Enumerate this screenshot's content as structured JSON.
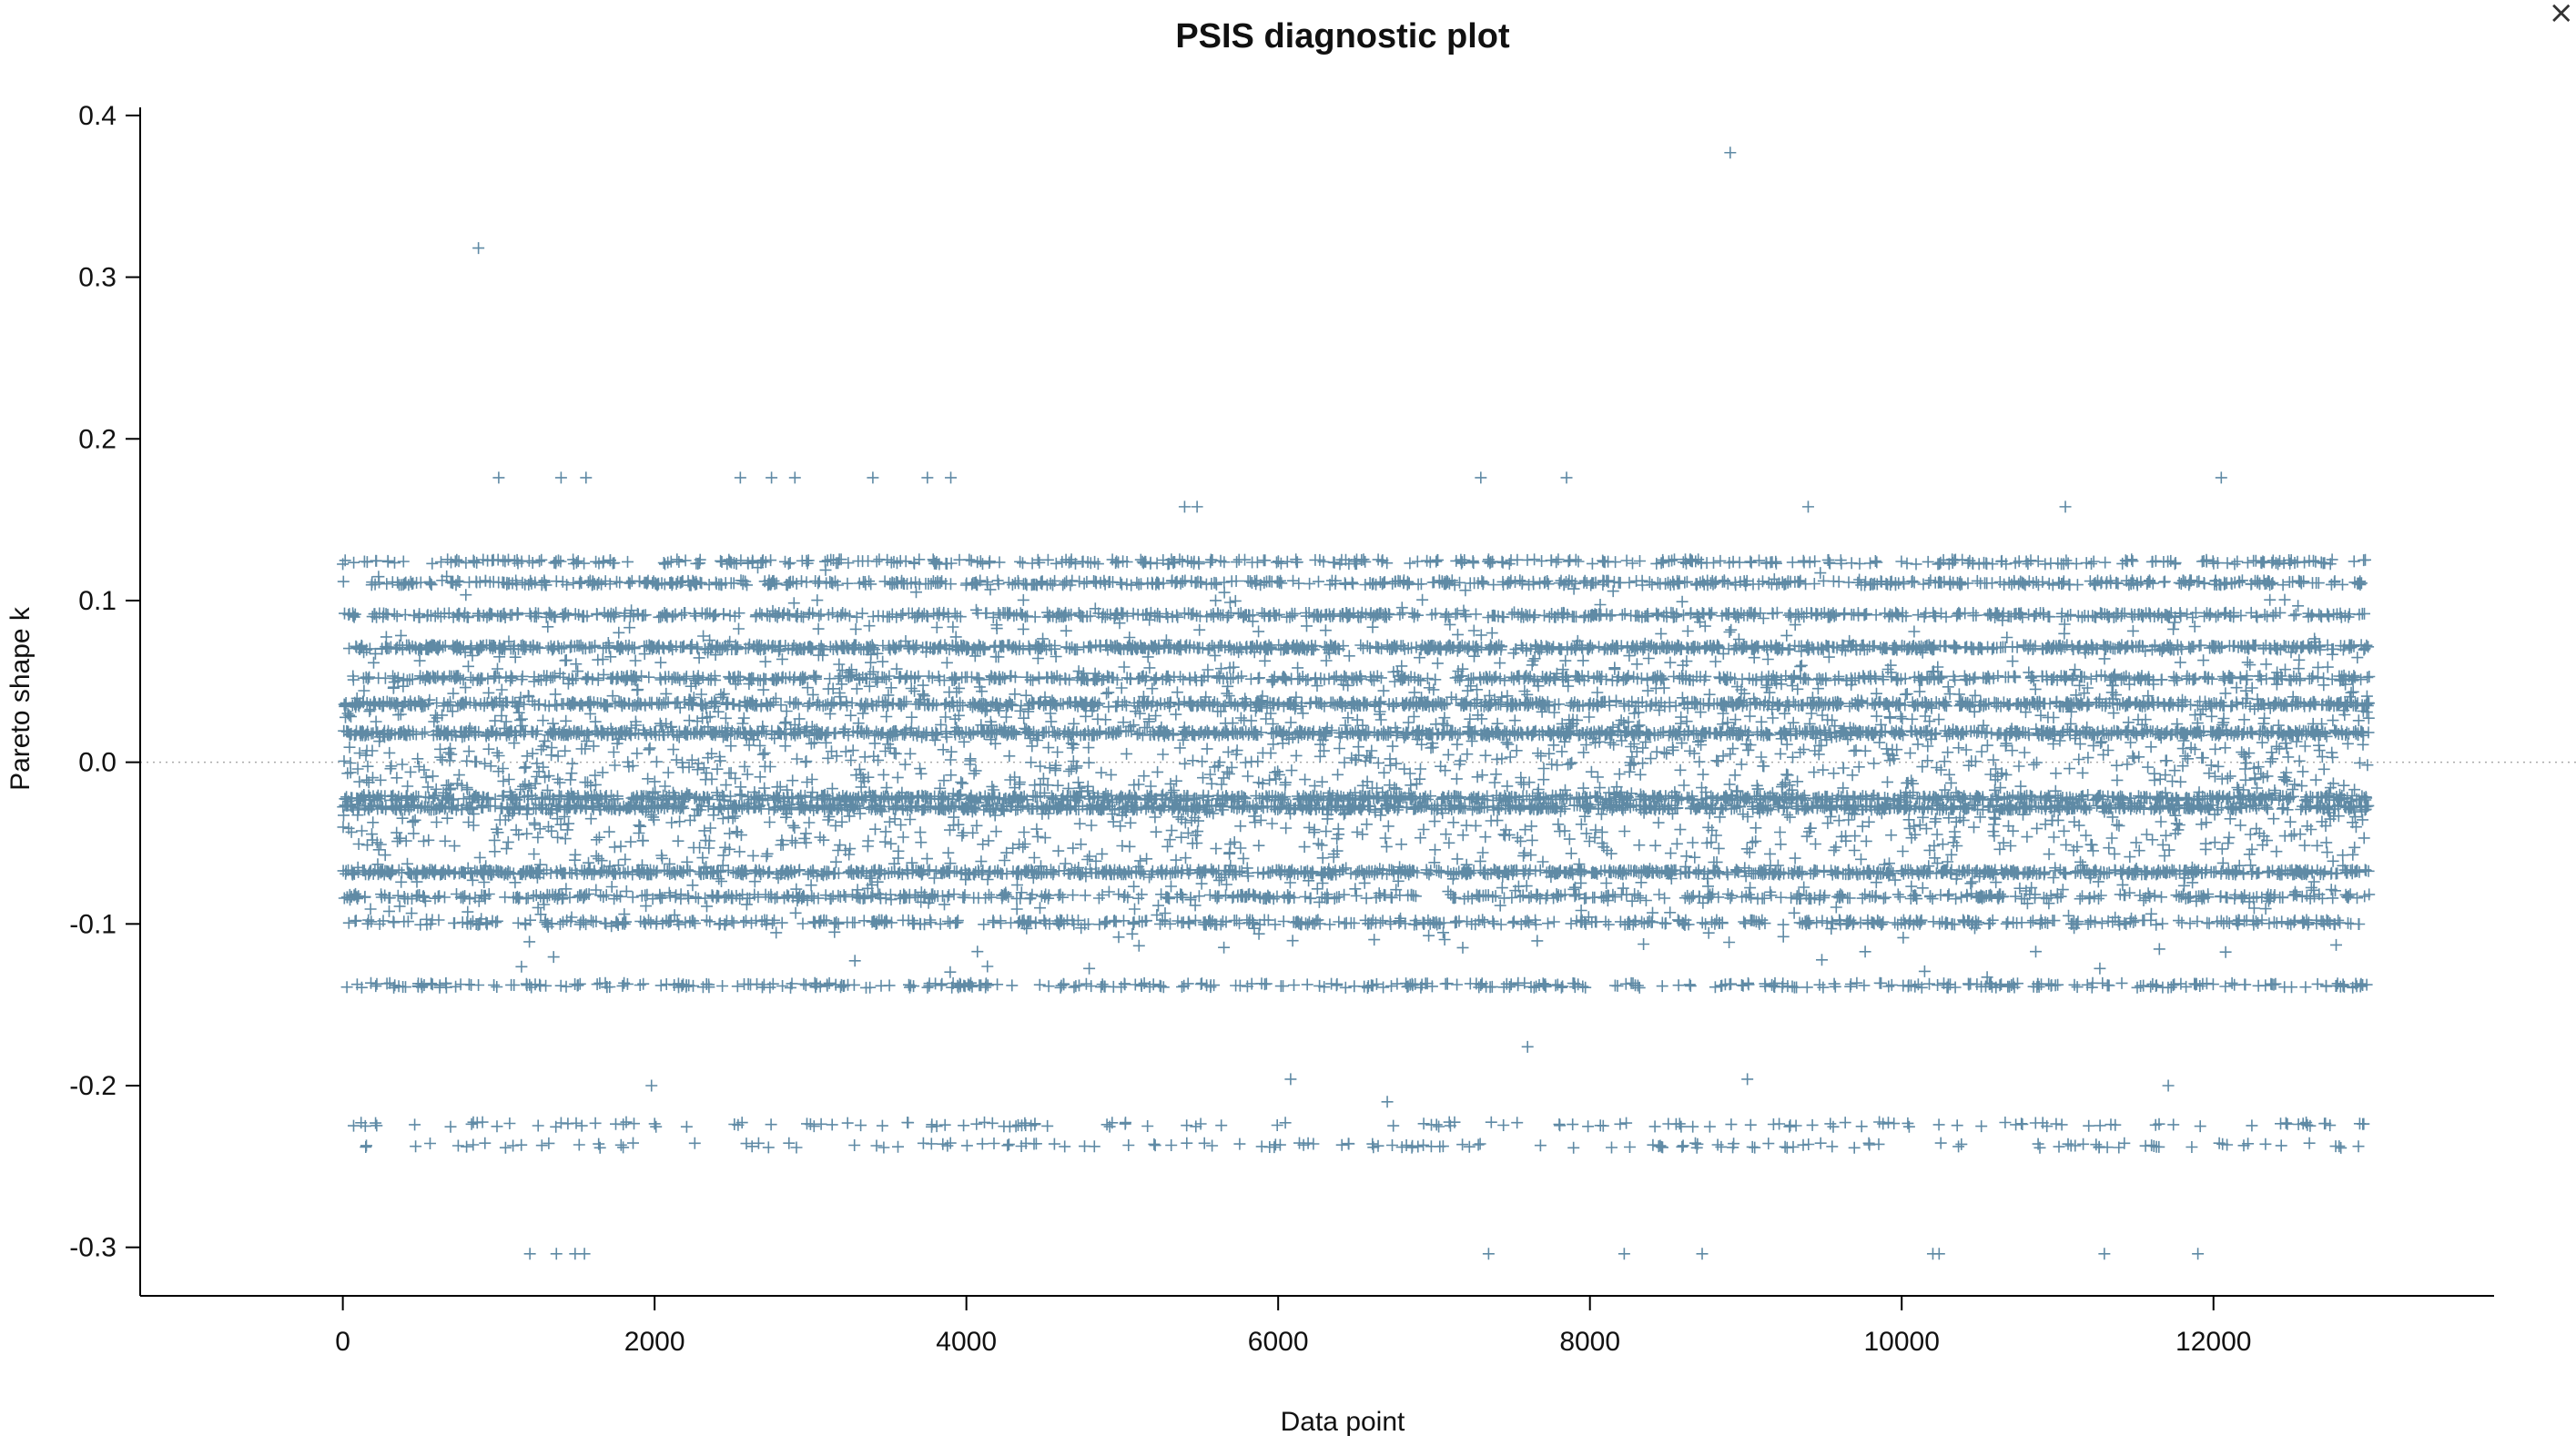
{
  "window": {
    "close_glyph": "×",
    "close_icon": "close-icon"
  },
  "chart_data": {
    "type": "scatter",
    "title": "PSIS diagnostic plot",
    "xlabel": "Data point",
    "ylabel": "Pareto shape k",
    "xlim": [
      -1300,
      13800
    ],
    "ylim": [
      -0.33,
      0.405
    ],
    "x_ticks": [
      0,
      2000,
      4000,
      6000,
      8000,
      10000,
      12000
    ],
    "x_tick_labels": [
      "0",
      "2000",
      "4000",
      "6000",
      "8000",
      "10000",
      "12000"
    ],
    "y_ticks": [
      -0.3,
      -0.2,
      -0.1,
      0.0,
      0.1,
      0.2,
      0.3,
      0.4
    ],
    "y_tick_labels": [
      "-0.3",
      "-0.2",
      "-0.1",
      "0.0",
      "0.1",
      "0.2",
      "0.3",
      "0.4"
    ],
    "reference_line_y": 0.0,
    "marker": "+",
    "marker_color": "#5f8aa5",
    "grid": false,
    "n_points": 13000,
    "bands": [
      {
        "k": 0.124,
        "share": 0.03
      },
      {
        "k": 0.111,
        "share": 0.05
      },
      {
        "k": 0.091,
        "share": 0.05
      },
      {
        "k": 0.071,
        "share": 0.08
      },
      {
        "k": 0.052,
        "share": 0.05
      },
      {
        "k": 0.036,
        "share": 0.07
      },
      {
        "k": 0.018,
        "share": 0.09
      },
      {
        "k": -0.022,
        "share": 0.07
      },
      {
        "k": -0.028,
        "share": 0.08
      },
      {
        "k": -0.068,
        "share": 0.08
      },
      {
        "k": -0.083,
        "share": 0.04
      },
      {
        "k": -0.099,
        "share": 0.04
      },
      {
        "k": -0.138,
        "share": 0.03
      },
      {
        "k": -0.224,
        "share": 0.012
      },
      {
        "k": -0.237,
        "share": 0.012
      }
    ],
    "scatter_cloud": {
      "k_min": -0.15,
      "k_max": 0.135,
      "share": 0.208
    },
    "outliers": [
      {
        "x": 870,
        "y": 0.318
      },
      {
        "x": 8900,
        "y": 0.377
      },
      {
        "x": 1000,
        "y": 0.176
      },
      {
        "x": 1400,
        "y": 0.176
      },
      {
        "x": 1560,
        "y": 0.176
      },
      {
        "x": 2550,
        "y": 0.176
      },
      {
        "x": 2750,
        "y": 0.176
      },
      {
        "x": 2900,
        "y": 0.176
      },
      {
        "x": 3400,
        "y": 0.176
      },
      {
        "x": 3750,
        "y": 0.176
      },
      {
        "x": 3900,
        "y": 0.176
      },
      {
        "x": 7300,
        "y": 0.176
      },
      {
        "x": 7850,
        "y": 0.176
      },
      {
        "x": 12050,
        "y": 0.176
      },
      {
        "x": 5400,
        "y": 0.158
      },
      {
        "x": 5480,
        "y": 0.158
      },
      {
        "x": 9400,
        "y": 0.158
      },
      {
        "x": 11050,
        "y": 0.158
      },
      {
        "x": 1200,
        "y": -0.304
      },
      {
        "x": 1370,
        "y": -0.304
      },
      {
        "x": 1490,
        "y": -0.304
      },
      {
        "x": 1550,
        "y": -0.304
      },
      {
        "x": 7350,
        "y": -0.304
      },
      {
        "x": 8220,
        "y": -0.304
      },
      {
        "x": 8720,
        "y": -0.304
      },
      {
        "x": 10200,
        "y": -0.304
      },
      {
        "x": 10240,
        "y": -0.304
      },
      {
        "x": 11300,
        "y": -0.304
      },
      {
        "x": 11900,
        "y": -0.304
      },
      {
        "x": 7600,
        "y": -0.176
      },
      {
        "x": 9010,
        "y": -0.196
      },
      {
        "x": 6080,
        "y": -0.196
      },
      {
        "x": 6700,
        "y": -0.21
      },
      {
        "x": 1980,
        "y": -0.2
      },
      {
        "x": 11710,
        "y": -0.2
      }
    ]
  }
}
